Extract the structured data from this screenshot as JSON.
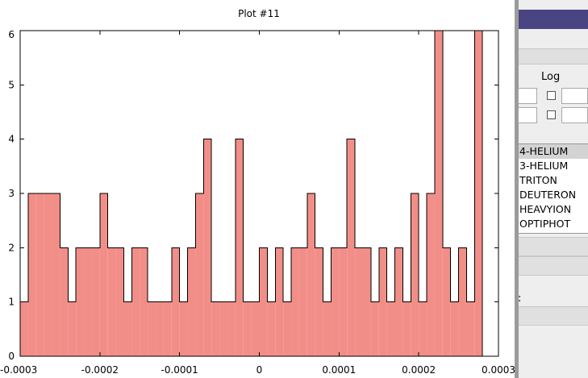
{
  "plot_window": {
    "title": "Plot #11"
  },
  "chart_data": {
    "type": "histogram",
    "title": "Plot #11",
    "xlabel": "",
    "ylabel": "",
    "xlim": [
      -0.0003,
      0.0003
    ],
    "ylim": [
      0,
      6
    ],
    "x_ticks": [
      "-0.0003",
      "-0.0002",
      "-0.0001",
      "0",
      "0.0001",
      "0.0002",
      "0.0003"
    ],
    "x_tick_values": [
      -0.0003,
      -0.0002,
      -0.0001,
      0,
      0.0001,
      0.0002,
      0.0003
    ],
    "y_ticks": [
      "0",
      "1",
      "2",
      "3",
      "4",
      "5",
      "6"
    ],
    "y_tick_values": [
      0,
      1,
      2,
      3,
      4,
      5,
      6
    ],
    "bin_start": -0.0003,
    "bin_width": 1e-05,
    "counts": [
      1,
      3,
      3,
      3,
      3,
      2,
      1,
      2,
      2,
      2,
      3,
      2,
      2,
      1,
      2,
      2,
      1,
      1,
      1,
      2,
      1,
      2,
      3,
      4,
      1,
      1,
      1,
      4,
      1,
      1,
      2,
      1,
      2,
      1,
      2,
      2,
      3,
      2,
      1,
      2,
      2,
      4,
      2,
      2,
      1,
      2,
      1,
      2,
      1,
      3,
      1,
      3,
      6,
      2,
      1,
      2,
      1,
      6
    ],
    "bar_color": "#f28e88",
    "edge_color": "#000000",
    "grid": false
  },
  "side_panel": {
    "log_label": "Log",
    "particles": [
      "4-HELIUM",
      "3-HELIUM",
      "TRITON",
      "DEUTERON",
      "HEAVYION",
      "OPTIPHOT"
    ],
    "selected_particle": "4-HELIUM",
    "colon_label": ":"
  }
}
